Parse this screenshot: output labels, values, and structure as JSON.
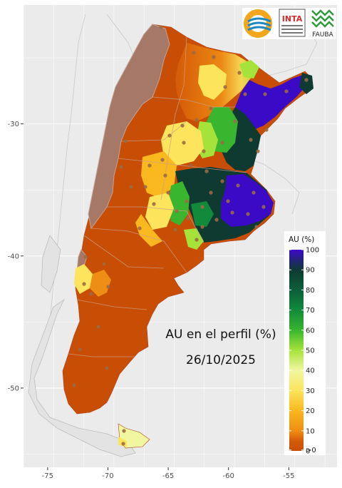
{
  "map": {
    "title_line1": "AU en el perfil (%)",
    "title_line2": "26/10/2025",
    "x_axis": {
      "min": -77,
      "max": -51,
      "ticks": [
        "-75",
        "-70",
        "-65",
        "-60",
        "-55"
      ],
      "tick_values": [
        -75,
        -70,
        -65,
        -60,
        -55
      ]
    },
    "y_axis": {
      "min": -56,
      "max": -21,
      "ticks": [
        "-30",
        "-40",
        "-50"
      ],
      "tick_values": [
        -30,
        -40,
        -50
      ]
    },
    "grid": true,
    "background_color": "#ebebeb",
    "andes_mask_color": "#a57868",
    "station_color": "#9b6a44"
  },
  "legend": {
    "title": "AU (%)",
    "labels": [
      "100",
      "90",
      "80",
      "70",
      "60",
      "50",
      "40",
      "30",
      "20",
      "10",
      ">0",
      "0"
    ],
    "label_values": [
      100,
      90,
      80,
      70,
      60,
      50,
      40,
      30,
      20,
      10,
      0.5,
      0
    ],
    "colors": [
      {
        "value": 0,
        "color": "#c94e05"
      },
      {
        "value": 5,
        "color": "#d65b07"
      },
      {
        "value": 10,
        "color": "#ef8e14"
      },
      {
        "value": 20,
        "color": "#f9b81e"
      },
      {
        "value": 30,
        "color": "#fce45c"
      },
      {
        "value": 40,
        "color": "#f0f7a0"
      },
      {
        "value": 50,
        "color": "#a6e33a"
      },
      {
        "value": 60,
        "color": "#3ab52f"
      },
      {
        "value": 70,
        "color": "#118a3c"
      },
      {
        "value": 80,
        "color": "#0c5e3a"
      },
      {
        "value": 90,
        "color": "#0f3a32"
      },
      {
        "value": 100,
        "color": "#3b0ac7"
      }
    ]
  },
  "logos": [
    {
      "name": "circular-logo",
      "text": ""
    },
    {
      "name": "inta-logo",
      "text": "INTA"
    },
    {
      "name": "fauba-logo",
      "text": "FAUBA"
    }
  ]
}
